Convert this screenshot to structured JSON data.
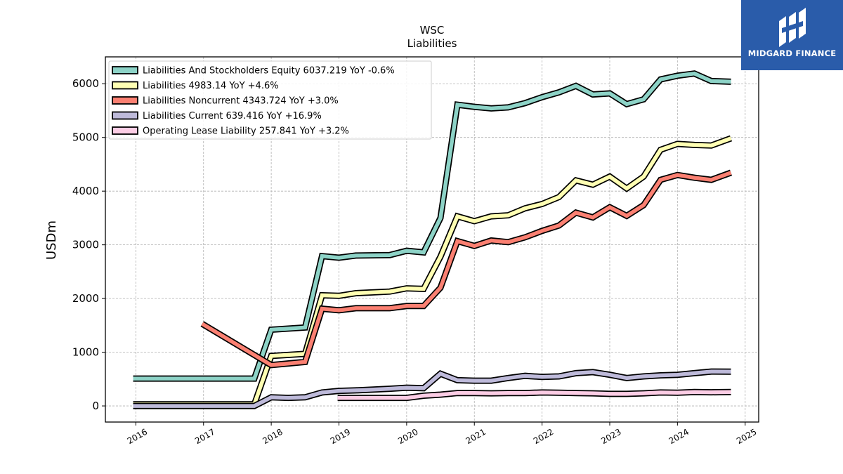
{
  "chart_data": {
    "type": "line",
    "title": "WSC",
    "subtitle": "Liabilities",
    "xlabel": "",
    "ylabel": "USDm",
    "xlim": [
      2015.55,
      2025.2
    ],
    "ylim": [
      -300,
      6500
    ],
    "grid": true,
    "legend_position": "top-left",
    "x_ticks": [
      2016,
      2017,
      2018,
      2019,
      2020,
      2021,
      2022,
      2023,
      2024,
      2025
    ],
    "x_tick_labels": [
      "2016",
      "2017",
      "2018",
      "2019",
      "2020",
      "2021",
      "2022",
      "2023",
      "2024",
      "2025"
    ],
    "y_ticks": [
      0,
      1000,
      2000,
      3000,
      4000,
      5000,
      6000
    ],
    "y_tick_labels": [
      "0",
      "1000",
      "2000",
      "3000",
      "4000",
      "5000",
      "6000"
    ],
    "series": [
      {
        "name": "Liabilities And Stockholders Equity",
        "legend_label": "Liabilities And Stockholders Equity  6037.219 YoY -0.6%",
        "color": "#8dd3c7",
        "points": [
          [
            2015.96,
            510
          ],
          [
            2017.75,
            510
          ],
          [
            2018.0,
            1420
          ],
          [
            2018.5,
            1460
          ],
          [
            2018.75,
            2790
          ],
          [
            2019.0,
            2760
          ],
          [
            2019.25,
            2800
          ],
          [
            2019.75,
            2810
          ],
          [
            2020.0,
            2890
          ],
          [
            2020.25,
            2860
          ],
          [
            2020.5,
            3500
          ],
          [
            2020.75,
            5610
          ],
          [
            2021.0,
            5570
          ],
          [
            2021.25,
            5540
          ],
          [
            2021.5,
            5560
          ],
          [
            2021.75,
            5640
          ],
          [
            2022.0,
            5750
          ],
          [
            2022.25,
            5840
          ],
          [
            2022.5,
            5960
          ],
          [
            2022.75,
            5800
          ],
          [
            2023.0,
            5820
          ],
          [
            2023.25,
            5620
          ],
          [
            2023.5,
            5710
          ],
          [
            2023.75,
            6080
          ],
          [
            2024.0,
            6150
          ],
          [
            2024.25,
            6190
          ],
          [
            2024.5,
            6050
          ],
          [
            2024.79,
            6037
          ]
        ]
      },
      {
        "name": "Liabilities",
        "legend_label": "Liabilities  4983.14 YoY +4.6%",
        "color": "#ffffb3",
        "points": [
          [
            2015.96,
            30
          ],
          [
            2017.75,
            30
          ],
          [
            2018.0,
            930
          ],
          [
            2018.5,
            970
          ],
          [
            2018.75,
            2060
          ],
          [
            2019.0,
            2050
          ],
          [
            2019.25,
            2100
          ],
          [
            2019.75,
            2130
          ],
          [
            2020.0,
            2190
          ],
          [
            2020.25,
            2180
          ],
          [
            2020.5,
            2780
          ],
          [
            2020.75,
            3530
          ],
          [
            2021.0,
            3440
          ],
          [
            2021.25,
            3530
          ],
          [
            2021.5,
            3550
          ],
          [
            2021.75,
            3680
          ],
          [
            2022.0,
            3760
          ],
          [
            2022.25,
            3890
          ],
          [
            2022.5,
            4200
          ],
          [
            2022.75,
            4120
          ],
          [
            2023.0,
            4270
          ],
          [
            2023.25,
            4050
          ],
          [
            2023.5,
            4270
          ],
          [
            2023.75,
            4770
          ],
          [
            2024.0,
            4880
          ],
          [
            2024.25,
            4860
          ],
          [
            2024.5,
            4850
          ],
          [
            2024.79,
            4983
          ]
        ]
      },
      {
        "name": "Liabilities Noncurrent",
        "legend_label": "Liabilities Noncurrent  4343.724 YoY +3.0%",
        "color": "#fb8072",
        "points": [
          [
            2016.98,
            1530
          ],
          [
            2018.0,
            760
          ],
          [
            2018.5,
            820
          ],
          [
            2018.75,
            1810
          ],
          [
            2019.0,
            1780
          ],
          [
            2019.25,
            1820
          ],
          [
            2019.75,
            1820
          ],
          [
            2020.0,
            1860
          ],
          [
            2020.25,
            1860
          ],
          [
            2020.5,
            2200
          ],
          [
            2020.75,
            3070
          ],
          [
            2021.0,
            2980
          ],
          [
            2021.25,
            3080
          ],
          [
            2021.5,
            3050
          ],
          [
            2021.75,
            3140
          ],
          [
            2022.0,
            3260
          ],
          [
            2022.25,
            3360
          ],
          [
            2022.5,
            3600
          ],
          [
            2022.75,
            3510
          ],
          [
            2023.0,
            3700
          ],
          [
            2023.25,
            3540
          ],
          [
            2023.5,
            3740
          ],
          [
            2023.75,
            4210
          ],
          [
            2024.0,
            4300
          ],
          [
            2024.25,
            4250
          ],
          [
            2024.5,
            4210
          ],
          [
            2024.79,
            4344
          ]
        ]
      },
      {
        "name": "Liabilities Current",
        "legend_label": "Liabilities Current  639.416 YoY +16.9%",
        "color": "#bebada",
        "points": [
          [
            2015.96,
            0
          ],
          [
            2017.75,
            0
          ],
          [
            2018.0,
            160
          ],
          [
            2018.25,
            150
          ],
          [
            2018.5,
            160
          ],
          [
            2018.75,
            250
          ],
          [
            2019.0,
            280
          ],
          [
            2019.25,
            290
          ],
          [
            2019.75,
            320
          ],
          [
            2020.0,
            340
          ],
          [
            2020.25,
            330
          ],
          [
            2020.5,
            600
          ],
          [
            2020.75,
            480
          ],
          [
            2021.0,
            470
          ],
          [
            2021.25,
            470
          ],
          [
            2021.5,
            520
          ],
          [
            2021.75,
            560
          ],
          [
            2022.0,
            540
          ],
          [
            2022.25,
            550
          ],
          [
            2022.5,
            610
          ],
          [
            2022.75,
            630
          ],
          [
            2023.0,
            580
          ],
          [
            2023.25,
            520
          ],
          [
            2023.5,
            550
          ],
          [
            2023.75,
            570
          ],
          [
            2024.0,
            580
          ],
          [
            2024.25,
            610
          ],
          [
            2024.5,
            640
          ],
          [
            2024.79,
            639
          ]
        ]
      },
      {
        "name": "Operating Lease Liability",
        "legend_label": "Operating Lease Liability  257.841 YoY +3.2%",
        "color": "#fccde5",
        "points": [
          [
            2018.98,
            150
          ],
          [
            2020.0,
            150
          ],
          [
            2020.25,
            190
          ],
          [
            2020.5,
            210
          ],
          [
            2020.75,
            240
          ],
          [
            2021.0,
            240
          ],
          [
            2021.25,
            235
          ],
          [
            2021.5,
            240
          ],
          [
            2021.75,
            240
          ],
          [
            2022.0,
            250
          ],
          [
            2022.25,
            245
          ],
          [
            2022.5,
            240
          ],
          [
            2022.75,
            235
          ],
          [
            2023.0,
            225
          ],
          [
            2023.25,
            225
          ],
          [
            2023.5,
            235
          ],
          [
            2023.75,
            250
          ],
          [
            2024.0,
            245
          ],
          [
            2024.25,
            260
          ],
          [
            2024.5,
            255
          ],
          [
            2024.79,
            258
          ]
        ]
      }
    ]
  },
  "logo": {
    "name": "MIDGARD FINANCE"
  }
}
